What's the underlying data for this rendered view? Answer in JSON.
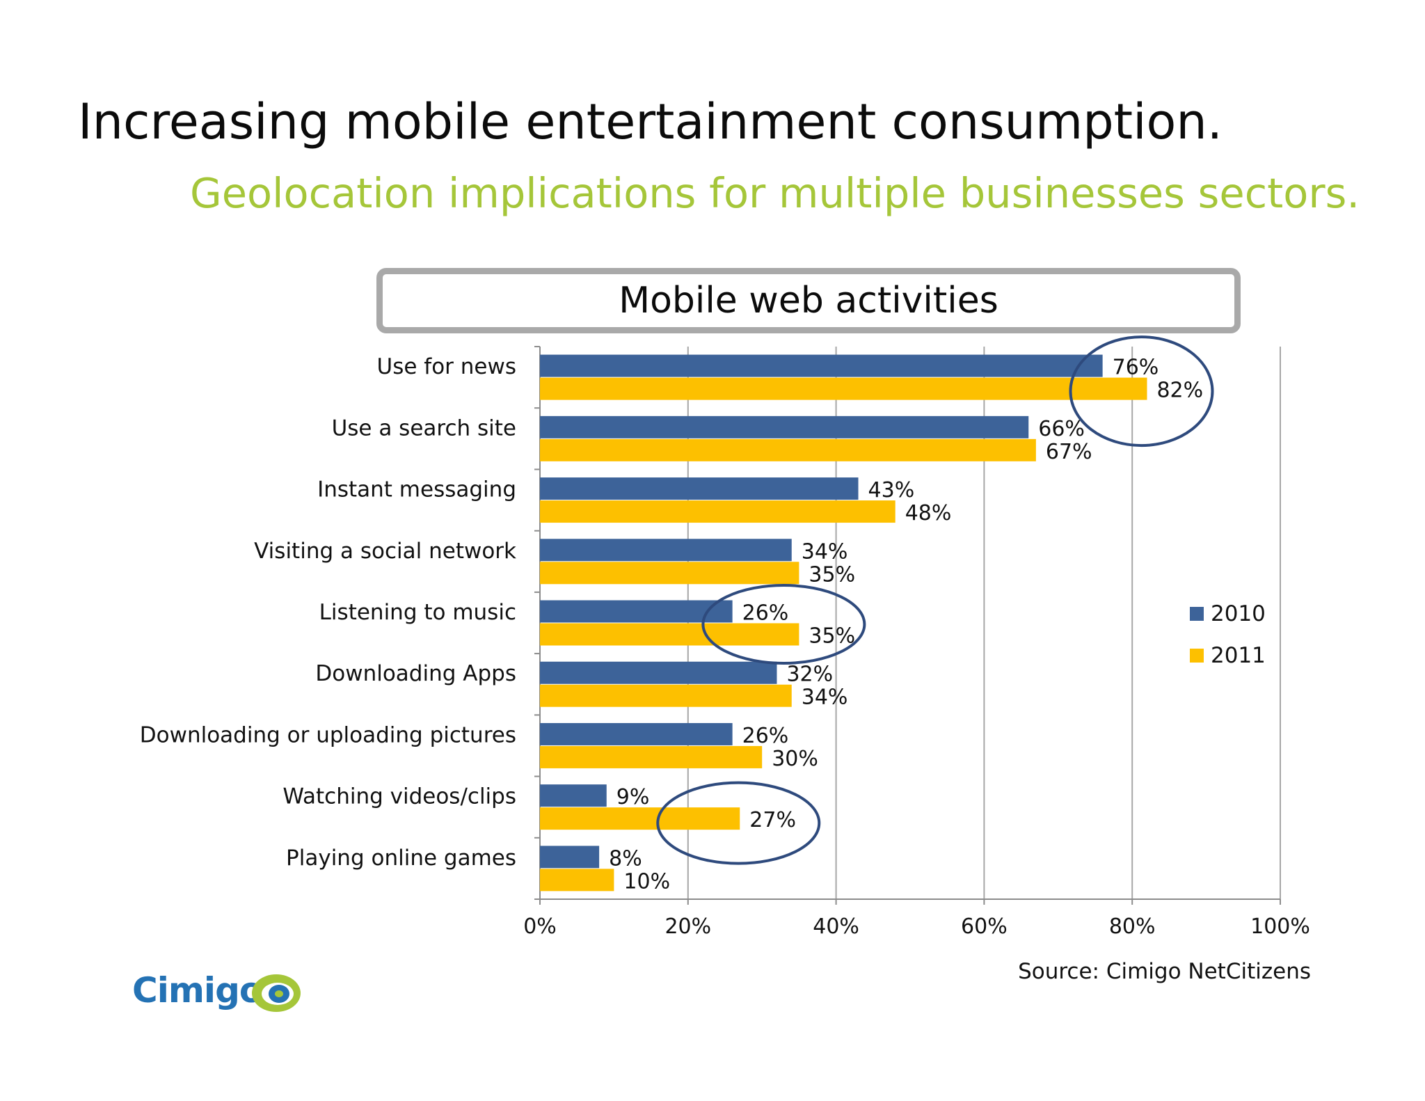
{
  "title": "Increasing mobile entertainment consumption.",
  "subtitle": "Geolocation implications for multiple businesses sectors.",
  "source": "Source: Cimigo NetCitizens",
  "logo": {
    "text": "Cimigo",
    "icon": "eye-icon"
  },
  "colors": {
    "series_2010": "#3d6399",
    "series_2011": "#fdc000",
    "highlight_circle": "#2e4a7d",
    "gridline": "#a6a6a6",
    "subtitle": "#a5c639",
    "logo_text": "#2472b4",
    "logo_eye_outer": "#a5c639"
  },
  "chart_data": {
    "type": "bar",
    "orientation": "horizontal",
    "title": "Mobile web activities",
    "categories": [
      "Use for news",
      "Use a search site",
      "Instant messaging",
      "Visiting a social network",
      "Listening to music",
      "Downloading Apps",
      "Downloading or uploading pictures",
      "Watching videos/clips",
      "Playing online games"
    ],
    "series": [
      {
        "name": "2010",
        "values": [
          76,
          66,
          43,
          34,
          26,
          32,
          26,
          9,
          8
        ],
        "labels": [
          "76%",
          "66%",
          "43%",
          "34%",
          "26%",
          "32%",
          "26%",
          "9%",
          "8%"
        ]
      },
      {
        "name": "2011",
        "values": [
          82,
          67,
          48,
          35,
          35,
          34,
          30,
          27,
          10
        ],
        "labels": [
          "82%",
          "67%",
          "48%",
          "35%",
          "35%",
          "34%",
          "30%",
          "27%",
          "10%"
        ]
      }
    ],
    "xlim": [
      0,
      100
    ],
    "xticks": [
      0,
      20,
      40,
      60,
      80,
      100
    ],
    "xtick_labels": [
      "0%",
      "20%",
      "40%",
      "60%",
      "80%",
      "100%"
    ],
    "grid": true,
    "legend": "right",
    "highlighted_categories": [
      "Use for news",
      "Listening to music",
      "Watching videos/clips"
    ]
  }
}
